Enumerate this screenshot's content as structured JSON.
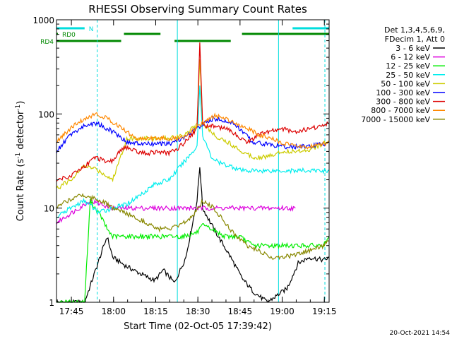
{
  "chart_data": {
    "type": "line",
    "title": "RHESSI Observing Summary Count Rates",
    "xlabel": "Start Time (02-Oct-05 17:39:42)",
    "ylabel_main": "Count Rate (s",
    "ylabel_sup1": "-1",
    "ylabel_mid": " detector",
    "ylabel_sup2": "-1",
    "ylabel_end": ")",
    "y_scale": "log",
    "ylim": [
      1,
      1000
    ],
    "x_units": "minutes since 17:39:42",
    "xlim": [
      0,
      97
    ],
    "x_ticks": [
      {
        "x": 5.3,
        "label": "17:45"
      },
      {
        "x": 20.3,
        "label": "18:00"
      },
      {
        "x": 35.3,
        "label": "18:15"
      },
      {
        "x": 50.3,
        "label": "18:30"
      },
      {
        "x": 65.3,
        "label": "18:45"
      },
      {
        "x": 80.3,
        "label": "19:00"
      },
      {
        "x": 95.3,
        "label": "19:15"
      }
    ],
    "y_ticks": [
      {
        "v": 1,
        "label": "1"
      },
      {
        "v": 10,
        "label": "10"
      },
      {
        "v": 100,
        "label": "100"
      },
      {
        "v": 1000,
        "label": "1000"
      }
    ],
    "legend_header": [
      "Det 1,3,4,5,6,9,",
      "FDecim 1, Att 0"
    ],
    "legend_position": "top-right",
    "series": [
      {
        "name": "3 - 6 keV",
        "color": "#000000",
        "points": [
          [
            0,
            1
          ],
          [
            10,
            1
          ],
          [
            18,
            5
          ],
          [
            20,
            3
          ],
          [
            25,
            2.4
          ],
          [
            30,
            2
          ],
          [
            35,
            1.7
          ],
          [
            38,
            2.2
          ],
          [
            42,
            1.6
          ],
          [
            46,
            3
          ],
          [
            50,
            12
          ],
          [
            51,
            28
          ],
          [
            52,
            10
          ],
          [
            56,
            6
          ],
          [
            62,
            3
          ],
          [
            66,
            1.8
          ],
          [
            70,
            1.3
          ],
          [
            75,
            1
          ],
          [
            82,
            1.4
          ],
          [
            86,
            2.6
          ],
          [
            90,
            3
          ],
          [
            95,
            2.8
          ],
          [
            97,
            3
          ]
        ]
      },
      {
        "name": "6 - 12 keV",
        "color": "#dd00dd",
        "points": [
          [
            0,
            7
          ],
          [
            8,
            10
          ],
          [
            12,
            12
          ],
          [
            20,
            10
          ],
          [
            25,
            10
          ],
          [
            30,
            10
          ],
          [
            35,
            10
          ],
          [
            40,
            10
          ],
          [
            45,
            10
          ],
          [
            50,
            10
          ],
          [
            55,
            10
          ],
          [
            60,
            10
          ],
          [
            65,
            10
          ],
          [
            70,
            10
          ],
          [
            75,
            10
          ],
          [
            80,
            10
          ],
          [
            85,
            10
          ]
        ]
      },
      {
        "name": "12 - 25 keV",
        "color": "#00ee00",
        "points": [
          [
            0,
            1
          ],
          [
            8,
            1
          ],
          [
            10,
            1
          ],
          [
            12,
            12
          ],
          [
            16,
            8
          ],
          [
            18,
            6
          ],
          [
            20,
            5
          ],
          [
            25,
            5
          ],
          [
            30,
            5
          ],
          [
            35,
            5
          ],
          [
            40,
            5
          ],
          [
            45,
            5
          ],
          [
            50,
            5.5
          ],
          [
            52,
            6.5
          ],
          [
            55,
            6
          ],
          [
            60,
            5
          ],
          [
            65,
            5
          ],
          [
            70,
            4
          ],
          [
            75,
            4
          ],
          [
            80,
            4
          ],
          [
            85,
            4
          ],
          [
            90,
            4
          ],
          [
            95,
            4
          ],
          [
            97,
            5
          ]
        ]
      },
      {
        "name": "25 - 50 keV",
        "color": "#00eeee",
        "points": [
          [
            0,
            8
          ],
          [
            5,
            10
          ],
          [
            10,
            12
          ],
          [
            15,
            9
          ],
          [
            20,
            10
          ],
          [
            25,
            11
          ],
          [
            30,
            14
          ],
          [
            35,
            18
          ],
          [
            40,
            20
          ],
          [
            45,
            30
          ],
          [
            50,
            45
          ],
          [
            51,
            200
          ],
          [
            52,
            60
          ],
          [
            55,
            35
          ],
          [
            58,
            30
          ],
          [
            62,
            28
          ],
          [
            66,
            25
          ],
          [
            70,
            25
          ],
          [
            75,
            25
          ],
          [
            80,
            25
          ],
          [
            85,
            25
          ],
          [
            90,
            25
          ],
          [
            95,
            25
          ],
          [
            97,
            25
          ]
        ]
      },
      {
        "name": "50 - 100 keV",
        "color": "#cccc00",
        "points": [
          [
            0,
            16
          ],
          [
            5,
            20
          ],
          [
            10,
            28
          ],
          [
            14,
            26
          ],
          [
            18,
            22
          ],
          [
            20,
            20
          ],
          [
            25,
            55
          ],
          [
            30,
            55
          ],
          [
            35,
            55
          ],
          [
            40,
            55
          ],
          [
            45,
            60
          ],
          [
            50,
            75
          ],
          [
            51,
            400
          ],
          [
            52,
            80
          ],
          [
            56,
            60
          ],
          [
            62,
            48
          ],
          [
            66,
            40
          ],
          [
            70,
            35
          ],
          [
            75,
            35
          ],
          [
            80,
            40
          ],
          [
            85,
            40
          ],
          [
            90,
            42
          ],
          [
            95,
            48
          ],
          [
            97,
            50
          ]
        ]
      },
      {
        "name": "100 - 300 keV",
        "color": "#0000ff",
        "points": [
          [
            0,
            40
          ],
          [
            5,
            60
          ],
          [
            10,
            75
          ],
          [
            14,
            80
          ],
          [
            18,
            70
          ],
          [
            22,
            60
          ],
          [
            25,
            50
          ],
          [
            30,
            48
          ],
          [
            35,
            48
          ],
          [
            40,
            48
          ],
          [
            45,
            55
          ],
          [
            50,
            70
          ],
          [
            53,
            80
          ],
          [
            56,
            90
          ],
          [
            60,
            85
          ],
          [
            64,
            75
          ],
          [
            70,
            50
          ],
          [
            75,
            48
          ],
          [
            80,
            45
          ],
          [
            85,
            45
          ],
          [
            90,
            45
          ],
          [
            95,
            48
          ],
          [
            97,
            50
          ]
        ]
      },
      {
        "name": "300 - 800 keV",
        "color": "#dd0000",
        "points": [
          [
            0,
            20
          ],
          [
            5,
            22
          ],
          [
            10,
            28
          ],
          [
            14,
            35
          ],
          [
            18,
            30
          ],
          [
            20,
            32
          ],
          [
            24,
            45
          ],
          [
            28,
            40
          ],
          [
            32,
            38
          ],
          [
            36,
            40
          ],
          [
            40,
            38
          ],
          [
            44,
            45
          ],
          [
            48,
            60
          ],
          [
            50,
            70
          ],
          [
            51,
            600
          ],
          [
            52,
            75
          ],
          [
            56,
            75
          ],
          [
            60,
            70
          ],
          [
            64,
            60
          ],
          [
            68,
            50
          ],
          [
            72,
            60
          ],
          [
            76,
            65
          ],
          [
            80,
            70
          ],
          [
            85,
            65
          ],
          [
            90,
            70
          ],
          [
            95,
            75
          ],
          [
            97,
            80
          ]
        ]
      },
      {
        "name": "800 - 7000 keV",
        "color": "#ff8800",
        "points": [
          [
            0,
            50
          ],
          [
            5,
            70
          ],
          [
            10,
            90
          ],
          [
            14,
            100
          ],
          [
            18,
            90
          ],
          [
            22,
            75
          ],
          [
            25,
            65
          ],
          [
            28,
            55
          ],
          [
            32,
            55
          ],
          [
            36,
            55
          ],
          [
            40,
            55
          ],
          [
            44,
            55
          ],
          [
            48,
            65
          ],
          [
            52,
            80
          ],
          [
            56,
            95
          ],
          [
            60,
            90
          ],
          [
            64,
            80
          ],
          [
            68,
            70
          ],
          [
            72,
            60
          ],
          [
            76,
            55
          ],
          [
            80,
            50
          ],
          [
            85,
            45
          ],
          [
            90,
            45
          ],
          [
            95,
            48
          ],
          [
            97,
            50
          ]
        ]
      },
      {
        "name": "7000 - 15000 keV",
        "color": "#888800",
        "points": [
          [
            0,
            10
          ],
          [
            4,
            12
          ],
          [
            8,
            14
          ],
          [
            12,
            13
          ],
          [
            16,
            12
          ],
          [
            20,
            10
          ],
          [
            24,
            9
          ],
          [
            28,
            8
          ],
          [
            32,
            7
          ],
          [
            36,
            6
          ],
          [
            40,
            6
          ],
          [
            44,
            6.5
          ],
          [
            48,
            8
          ],
          [
            52,
            12
          ],
          [
            56,
            10
          ],
          [
            60,
            7
          ],
          [
            64,
            5
          ],
          [
            68,
            4
          ],
          [
            72,
            3.5
          ],
          [
            76,
            3
          ],
          [
            80,
            3
          ],
          [
            85,
            3.2
          ],
          [
            90,
            3.5
          ],
          [
            95,
            4
          ],
          [
            97,
            4.5
          ]
        ]
      }
    ],
    "top_bars": [
      {
        "label": "N",
        "color": "#00dddd",
        "row": 0,
        "segments": [
          [
            0,
            10
          ],
          [
            84,
            97
          ]
        ]
      },
      {
        "label": "RD0",
        "color": "#008800",
        "row": 1,
        "segments": [
          [
            0,
            0.5
          ],
          [
            24,
            37
          ],
          [
            66,
            97
          ]
        ]
      },
      {
        "label": "RD4",
        "color": "#008800",
        "row": 2,
        "segments": [
          [
            0,
            23
          ],
          [
            42,
            62
          ]
        ]
      }
    ],
    "vlines": [
      {
        "x": 14.5,
        "color": "#00dddd",
        "style": "dash"
      },
      {
        "x": 43,
        "color": "#00dddd",
        "style": "solid"
      },
      {
        "x": 79,
        "color": "#00dddd",
        "style": "solid"
      },
      {
        "x": 95.5,
        "color": "#00dddd",
        "style": "dash"
      }
    ],
    "grid": false
  },
  "footer": {
    "timestamp": "20-Oct-2021 14:54"
  }
}
